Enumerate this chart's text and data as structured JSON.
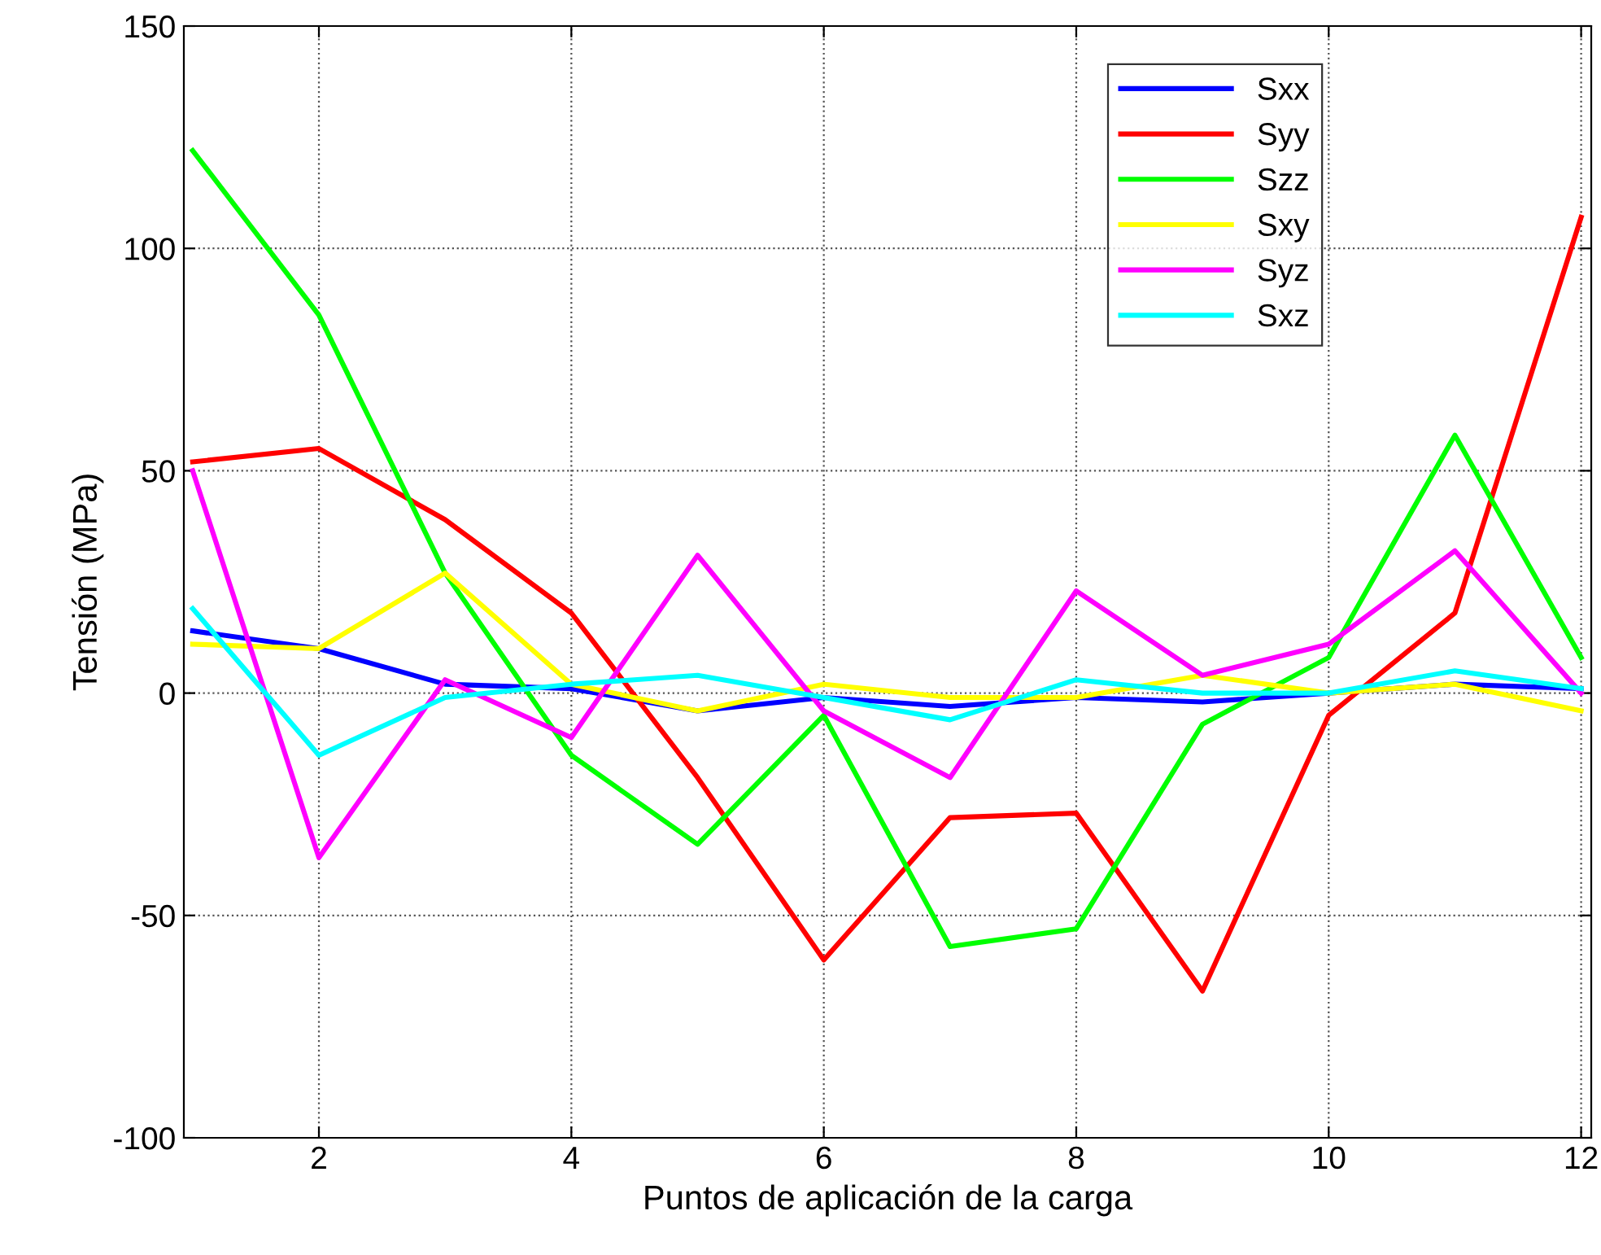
{
  "chart_data": {
    "type": "line",
    "xlabel": "Puntos de aplicación de la carga",
    "ylabel": "Tensión (MPa)",
    "x": [
      1,
      2,
      3,
      4,
      5,
      6,
      7,
      8,
      9,
      10,
      11,
      12
    ],
    "series": [
      {
        "name": "Sxx",
        "color": "#0000ff",
        "values": [
          14,
          10,
          2,
          1,
          -4,
          -1,
          -3,
          -1,
          -2,
          0,
          2,
          1
        ]
      },
      {
        "name": "Syy",
        "color": "#ff0000",
        "values": [
          52,
          55,
          39,
          18,
          -19,
          -60,
          -28,
          -27,
          -67,
          -5,
          18,
          107
        ]
      },
      {
        "name": "Szz",
        "color": "#00ff00",
        "values": [
          122,
          85,
          27,
          -14,
          -34,
          -5,
          -57,
          -53,
          -7,
          8,
          58,
          8
        ]
      },
      {
        "name": "Sxy",
        "color": "#ffff00",
        "values": [
          11,
          10,
          27,
          2,
          -4,
          2,
          -1,
          -1,
          4,
          0,
          2,
          -4
        ]
      },
      {
        "name": "Syz",
        "color": "#ff00ff",
        "values": [
          50,
          -37,
          3,
          -10,
          31,
          -4,
          -19,
          23,
          4,
          11,
          32,
          0
        ]
      },
      {
        "name": "Sxz",
        "color": "#00ffff",
        "values": [
          19,
          -14,
          -1,
          2,
          4,
          -1,
          -6,
          3,
          0,
          0,
          5,
          1
        ]
      }
    ],
    "xlim": [
      0.93,
      12.08
    ],
    "xticks": [
      2,
      4,
      6,
      8,
      10,
      12
    ],
    "ylim": [
      -100,
      150
    ],
    "yticks": [
      -100,
      -50,
      0,
      50,
      100,
      150
    ],
    "grid": true,
    "legend": "top right",
    "marker": "none",
    "line_style": "solid"
  }
}
